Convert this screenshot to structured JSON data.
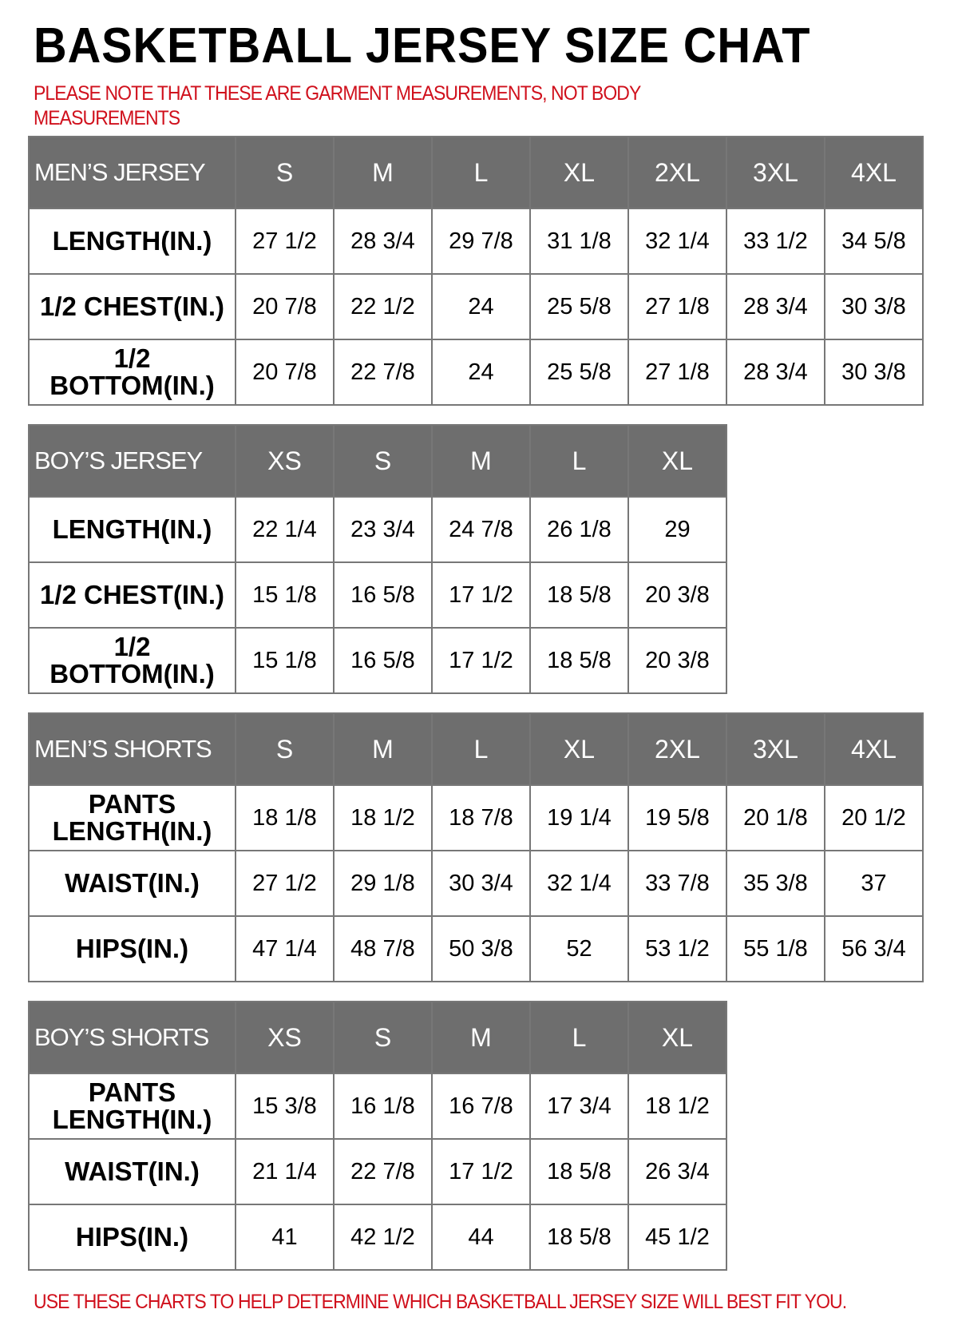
{
  "title": "BASKETBALL JERSEY SIZE CHAT",
  "note": "PLEASE NOTE THAT THESE ARE GARMENT MEASUREMENTS, NOT BODY MEASUREMENTS",
  "footer": "USE THESE CHARTS TO HELP DETERMINE WHICH BASKETBALL JERSEY SIZE WILL BEST FIT YOU.",
  "colors": {
    "header_bg": "#6e6e6e",
    "note_red": "#d0101c"
  },
  "tables": [
    {
      "label": "MEN’S JERSEY",
      "sizes": [
        "S",
        "M",
        "L",
        "XL",
        "2XL",
        "3XL",
        "4XL"
      ],
      "rows": [
        {
          "label": "LENGTH(IN.)",
          "values": [
            "27 1/2",
            "28 3/4",
            "29 7/8",
            "31 1/8",
            "32 1/4",
            "33 1/2",
            "34 5/8"
          ]
        },
        {
          "label": "1/2 CHEST(IN.)",
          "values": [
            "20 7/8",
            "22 1/2",
            "24",
            "25 5/8",
            "27 1/8",
            "28 3/4",
            "30 3/8"
          ]
        },
        {
          "label": "1/2 BOTTOM(IN.)",
          "values": [
            "20 7/8",
            "22 7/8",
            "24",
            "25 5/8",
            "27 1/8",
            "28 3/4",
            "30 3/8"
          ]
        }
      ]
    },
    {
      "label": "BOY’S JERSEY",
      "sizes": [
        "XS",
        "S",
        "M",
        "L",
        "XL"
      ],
      "rows": [
        {
          "label": "LENGTH(IN.)",
          "values": [
            "22 1/4",
            "23 3/4",
            "24 7/8",
            "26 1/8",
            "29"
          ]
        },
        {
          "label": "1/2 CHEST(IN.)",
          "values": [
            "15 1/8",
            "16 5/8",
            "17 1/2",
            "18 5/8",
            "20 3/8"
          ]
        },
        {
          "label": "1/2 BOTTOM(IN.)",
          "values": [
            "15 1/8",
            "16 5/8",
            "17 1/2",
            "18 5/8",
            "20 3/8"
          ]
        }
      ]
    },
    {
      "label": "MEN’S SHORTS",
      "sizes": [
        "S",
        "M",
        "L",
        "XL",
        "2XL",
        "3XL",
        "4XL"
      ],
      "rows": [
        {
          "label": "PANTS LENGTH(IN.)",
          "values": [
            "18 1/8",
            "18 1/2",
            "18 7/8",
            "19 1/4",
            "19 5/8",
            "20 1/8",
            "20 1/2"
          ]
        },
        {
          "label": "WAIST(IN.)",
          "values": [
            "27 1/2",
            "29 1/8",
            "30 3/4",
            "32 1/4",
            "33 7/8",
            "35 3/8",
            "37"
          ]
        },
        {
          "label": "HIPS(IN.)",
          "values": [
            "47 1/4",
            "48 7/8",
            "50 3/8",
            "52",
            "53 1/2",
            "55 1/8",
            "56 3/4"
          ]
        }
      ]
    },
    {
      "label": "BOY’S SHORTS",
      "sizes": [
        "XS",
        "S",
        "M",
        "L",
        "XL"
      ],
      "rows": [
        {
          "label": "PANTS LENGTH(IN.)",
          "values": [
            "15 3/8",
            "16 1/8",
            "16 7/8",
            "17 3/4",
            "18 1/2"
          ]
        },
        {
          "label": "WAIST(IN.)",
          "values": [
            "21 1/4",
            "22 7/8",
            "17 1/2",
            "18 5/8",
            "26 3/4"
          ]
        },
        {
          "label": "HIPS(IN.)",
          "values": [
            "41",
            "42 1/2",
            "44",
            "18 5/8",
            "45 1/2"
          ]
        }
      ]
    }
  ]
}
